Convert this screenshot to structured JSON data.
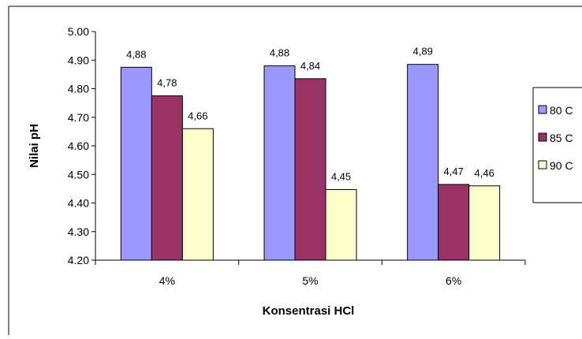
{
  "chart_data": {
    "type": "bar",
    "categories": [
      "4%",
      "5%",
      "6%"
    ],
    "series": [
      {
        "name": "80 C",
        "values": [
          4.875,
          4.88,
          4.885
        ],
        "labels": [
          "4,88",
          "4,88",
          "4,89"
        ],
        "color": "#9999ff"
      },
      {
        "name": "85 C",
        "values": [
          4.775,
          4.835,
          4.465
        ],
        "labels": [
          "4,78",
          "4,84",
          "4,47"
        ],
        "color": "#993366"
      },
      {
        "name": "90 C",
        "values": [
          4.66,
          4.447,
          4.46
        ],
        "labels": [
          "4,66",
          "4,45",
          "4,46"
        ],
        "color": "#ffffcc"
      }
    ],
    "title": "",
    "xlabel": "Konsentrasi HCl",
    "ylabel": "Nilai pH",
    "ylim": [
      4.2,
      5.0
    ],
    "yticks": [
      "4.20",
      "4.30",
      "4.40",
      "4.50",
      "4.60",
      "4.70",
      "4.80",
      "4.90",
      "5.00"
    ],
    "grid": false,
    "legend": "right"
  }
}
